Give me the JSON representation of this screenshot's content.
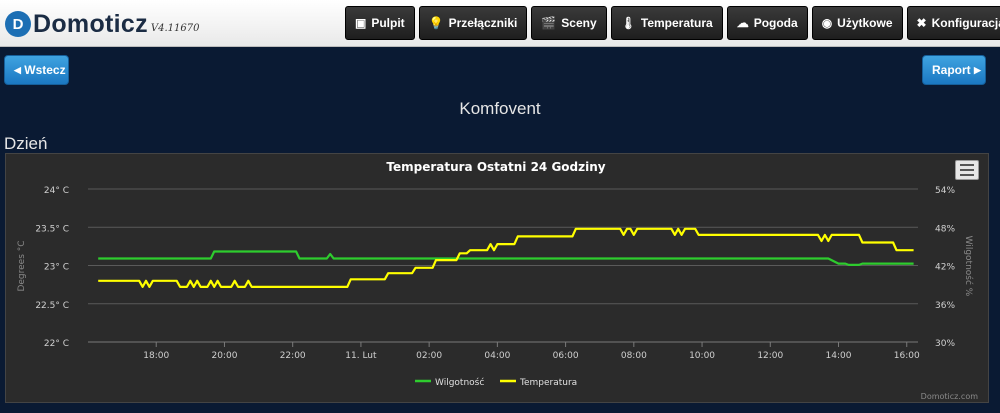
{
  "app": {
    "logo_letter": "D",
    "name": "Domoticz",
    "version": "V4.11670"
  },
  "nav": [
    {
      "label": "Pulpit",
      "icon": "dashboard-icon",
      "glyph": "▣"
    },
    {
      "label": "Przełączniki",
      "icon": "bulb-icon",
      "glyph": "💡"
    },
    {
      "label": "Sceny",
      "icon": "scene-icon",
      "glyph": "🎬"
    },
    {
      "label": "Temperatura",
      "icon": "thermometer-icon",
      "glyph": "🌡"
    },
    {
      "label": "Pogoda",
      "icon": "cloud-icon",
      "glyph": "☁"
    },
    {
      "label": "Użytkowe",
      "icon": "utility-icon",
      "glyph": "◉"
    },
    {
      "label": "Konfiguracja",
      "icon": "wrench-icon",
      "glyph": "✖",
      "has_dropdown": true
    }
  ],
  "buttons": {
    "back": "Wstecz",
    "report": "Raport"
  },
  "page_title": "Komfovent",
  "section_title": "Dzień",
  "chart_data": {
    "type": "line",
    "title": "Temperatura Ostatni 24 Godziny",
    "xlabel": "",
    "ylabel_left": "Degrees °C",
    "ylabel_right": "Wilgotność %",
    "x_unit": "hours since 16:00 on the previous day",
    "x_range": [
      0,
      24.33
    ],
    "x_ticks": [
      {
        "x": 2,
        "label": "18:00"
      },
      {
        "x": 4,
        "label": "20:00"
      },
      {
        "x": 6,
        "label": "22:00"
      },
      {
        "x": 8,
        "label": "11. Lut"
      },
      {
        "x": 10,
        "label": "02:00"
      },
      {
        "x": 12,
        "label": "04:00"
      },
      {
        "x": 14,
        "label": "06:00"
      },
      {
        "x": 16,
        "label": "08:00"
      },
      {
        "x": 18,
        "label": "10:00"
      },
      {
        "x": 20,
        "label": "12:00"
      },
      {
        "x": 22,
        "label": "14:00"
      },
      {
        "x": 24,
        "label": "16:00"
      }
    ],
    "y_left_range": [
      22,
      24
    ],
    "y_left_ticks": [
      "22° C",
      "22.5° C",
      "23° C",
      "23.5° C",
      "24° C"
    ],
    "y_right_range": [
      30,
      54
    ],
    "y_right_ticks": [
      "30%",
      "36%",
      "42%",
      "48%",
      "54%"
    ],
    "grid": true,
    "legend_position": "bottom-center",
    "credits": "Domoticz.com",
    "series": [
      {
        "name": "Wilgotność",
        "axis": "right",
        "color": "#2ecc2e",
        "points": [
          [
            0.3,
            43.1
          ],
          [
            3.6,
            43.1
          ],
          [
            3.7,
            44.2
          ],
          [
            6.1,
            44.2
          ],
          [
            6.2,
            43.1
          ],
          [
            7.0,
            43.1
          ],
          [
            7.1,
            43.8
          ],
          [
            7.2,
            43.1
          ],
          [
            21.7,
            43.1
          ],
          [
            22.0,
            42.3
          ],
          [
            22.2,
            42.3
          ],
          [
            22.3,
            42.1
          ],
          [
            22.6,
            42.1
          ],
          [
            22.7,
            42.3
          ],
          [
            24.2,
            42.3
          ]
        ]
      },
      {
        "name": "Temperatura",
        "axis": "left",
        "color": "#ffff00",
        "points": [
          [
            0.3,
            22.8
          ],
          [
            1.5,
            22.8
          ],
          [
            1.6,
            22.72
          ],
          [
            1.7,
            22.8
          ],
          [
            1.8,
            22.72
          ],
          [
            1.9,
            22.8
          ],
          [
            2.6,
            22.8
          ],
          [
            2.7,
            22.72
          ],
          [
            2.9,
            22.72
          ],
          [
            3.0,
            22.8
          ],
          [
            3.1,
            22.72
          ],
          [
            3.2,
            22.8
          ],
          [
            3.3,
            22.72
          ],
          [
            3.5,
            22.72
          ],
          [
            3.6,
            22.8
          ],
          [
            3.7,
            22.72
          ],
          [
            3.8,
            22.8
          ],
          [
            3.9,
            22.72
          ],
          [
            4.2,
            22.72
          ],
          [
            4.3,
            22.8
          ],
          [
            4.4,
            22.72
          ],
          [
            4.6,
            22.72
          ],
          [
            4.7,
            22.8
          ],
          [
            4.8,
            22.72
          ],
          [
            7.6,
            22.72
          ],
          [
            7.7,
            22.82
          ],
          [
            8.7,
            22.82
          ],
          [
            8.8,
            22.9
          ],
          [
            9.5,
            22.9
          ],
          [
            9.6,
            22.97
          ],
          [
            10.1,
            22.97
          ],
          [
            10.2,
            23.07
          ],
          [
            10.8,
            23.07
          ],
          [
            10.9,
            23.16
          ],
          [
            11.1,
            23.16
          ],
          [
            11.2,
            23.2
          ],
          [
            11.7,
            23.2
          ],
          [
            11.8,
            23.28
          ],
          [
            11.9,
            23.2
          ],
          [
            12.0,
            23.28
          ],
          [
            12.5,
            23.28
          ],
          [
            12.6,
            23.38
          ],
          [
            14.2,
            23.38
          ],
          [
            14.3,
            23.48
          ],
          [
            15.6,
            23.48
          ],
          [
            15.7,
            23.4
          ],
          [
            15.8,
            23.48
          ],
          [
            15.9,
            23.48
          ],
          [
            16.0,
            23.4
          ],
          [
            16.1,
            23.48
          ],
          [
            17.1,
            23.48
          ],
          [
            17.2,
            23.4
          ],
          [
            17.3,
            23.48
          ],
          [
            17.4,
            23.4
          ],
          [
            17.5,
            23.48
          ],
          [
            17.8,
            23.48
          ],
          [
            17.9,
            23.4
          ],
          [
            21.4,
            23.4
          ],
          [
            21.5,
            23.32
          ],
          [
            21.6,
            23.4
          ],
          [
            21.7,
            23.32
          ],
          [
            21.8,
            23.4
          ],
          [
            22.6,
            23.4
          ],
          [
            22.7,
            23.3
          ],
          [
            22.8,
            23.3
          ],
          [
            22.9,
            23.3
          ],
          [
            23.0,
            23.3
          ],
          [
            23.6,
            23.3
          ],
          [
            23.7,
            23.2
          ],
          [
            24.2,
            23.2
          ]
        ]
      }
    ]
  }
}
